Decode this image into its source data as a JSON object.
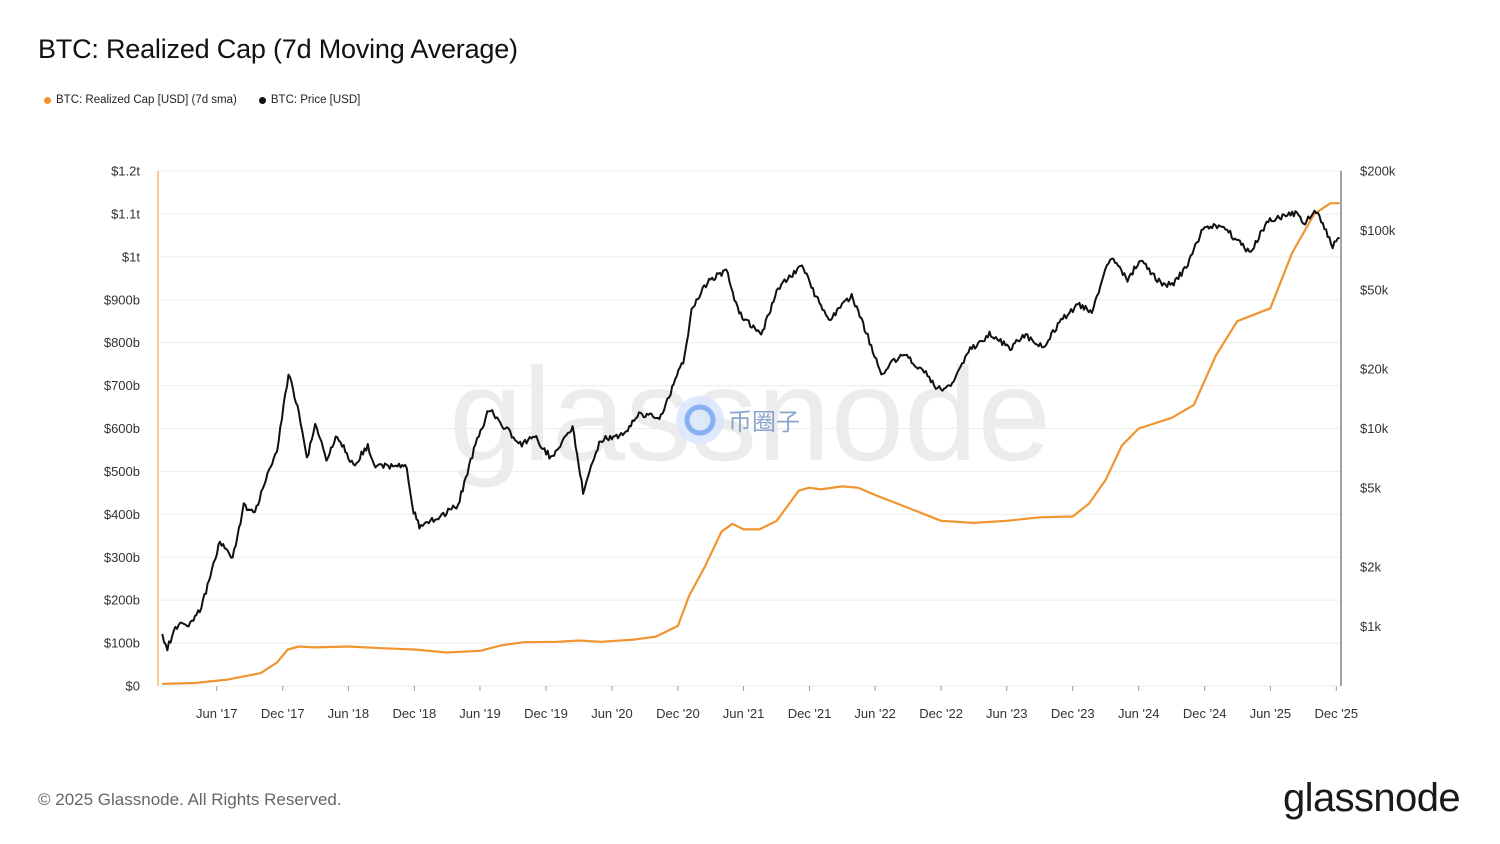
{
  "title": "BTC: Realized Cap (7d Moving Average)",
  "legend": [
    {
      "label": "BTC: Realized Cap [USD] (7d sma)",
      "color": "#f0952f"
    },
    {
      "label": "BTC: Price [USD]",
      "color": "#111111"
    }
  ],
  "footer": "© 2025 Glassnode. All Rights Reserved.",
  "brand": "glassnode",
  "watermark": {
    "text": "glassnode",
    "badge_text": "币圈子"
  },
  "chart_data": {
    "type": "line",
    "x_ticks": [
      "Jun '17",
      "Dec '17",
      "Jun '18",
      "Dec '18",
      "Jun '19",
      "Dec '19",
      "Jun '20",
      "Dec '20",
      "Jun '21",
      "Dec '21",
      "Jun '22",
      "Dec '22",
      "Jun '23",
      "Dec '23",
      "Jun '24",
      "Dec '24",
      "Jun '25",
      "Dec '25"
    ],
    "y_left": {
      "scale": "linear",
      "min": 0,
      "max": 1200,
      "unit": "billion USD",
      "ticks": [
        {
          "v": 0,
          "label": "$0"
        },
        {
          "v": 100,
          "label": "$100b"
        },
        {
          "v": 200,
          "label": "$200b"
        },
        {
          "v": 300,
          "label": "$300b"
        },
        {
          "v": 400,
          "label": "$400b"
        },
        {
          "v": 500,
          "label": "$500b"
        },
        {
          "v": 600,
          "label": "$600b"
        },
        {
          "v": 700,
          "label": "$700b"
        },
        {
          "v": 800,
          "label": "$800b"
        },
        {
          "v": 900,
          "label": "$900b"
        },
        {
          "v": 1000,
          "label": "$1t"
        },
        {
          "v": 1100,
          "label": "$1.1t"
        },
        {
          "v": 1200,
          "label": "$1.2t"
        }
      ]
    },
    "y_right": {
      "scale": "log",
      "min": 500,
      "max": 200000,
      "ticks": [
        {
          "v": 1000,
          "label": "$1k"
        },
        {
          "v": 2000,
          "label": "$2k"
        },
        {
          "v": 5000,
          "label": "$5k"
        },
        {
          "v": 10000,
          "label": "$10k"
        },
        {
          "v": 20000,
          "label": "$20k"
        },
        {
          "v": 50000,
          "label": "$50k"
        },
        {
          "v": 100000,
          "label": "$100k"
        },
        {
          "v": 200000,
          "label": "$200k"
        }
      ]
    },
    "grid": true,
    "series": [
      {
        "name": "BTC: Realized Cap [USD] (7d sma)",
        "axis": "left",
        "color": "#f0952f",
        "points": [
          [
            "2017-01-01",
            5
          ],
          [
            "2017-04-01",
            7
          ],
          [
            "2017-07-01",
            15
          ],
          [
            "2017-10-01",
            30
          ],
          [
            "2017-11-15",
            55
          ],
          [
            "2017-12-15",
            85
          ],
          [
            "2018-01-15",
            92
          ],
          [
            "2018-03-01",
            90
          ],
          [
            "2018-06-01",
            92
          ],
          [
            "2018-09-01",
            88
          ],
          [
            "2018-12-01",
            85
          ],
          [
            "2019-03-01",
            78
          ],
          [
            "2019-06-01",
            82
          ],
          [
            "2019-08-01",
            95
          ],
          [
            "2019-10-01",
            102
          ],
          [
            "2020-01-01",
            103
          ],
          [
            "2020-03-01",
            106
          ],
          [
            "2020-05-01",
            103
          ],
          [
            "2020-08-01",
            108
          ],
          [
            "2020-10-01",
            115
          ],
          [
            "2020-12-01",
            140
          ],
          [
            "2021-01-01",
            210
          ],
          [
            "2021-02-15",
            280
          ],
          [
            "2021-04-01",
            360
          ],
          [
            "2021-05-01",
            378
          ],
          [
            "2021-06-01",
            365
          ],
          [
            "2021-07-15",
            365
          ],
          [
            "2021-09-01",
            385
          ],
          [
            "2021-11-01",
            455
          ],
          [
            "2021-12-01",
            462
          ],
          [
            "2022-01-01",
            458
          ],
          [
            "2022-03-01",
            465
          ],
          [
            "2022-04-15",
            462
          ],
          [
            "2022-06-01",
            445
          ],
          [
            "2022-09-01",
            415
          ],
          [
            "2022-12-01",
            385
          ],
          [
            "2023-03-01",
            380
          ],
          [
            "2023-06-01",
            385
          ],
          [
            "2023-09-01",
            393
          ],
          [
            "2023-12-01",
            395
          ],
          [
            "2024-01-15",
            425
          ],
          [
            "2024-03-01",
            480
          ],
          [
            "2024-04-15",
            560
          ],
          [
            "2024-06-01",
            600
          ],
          [
            "2024-09-01",
            625
          ],
          [
            "2024-11-01",
            655
          ],
          [
            "2025-01-01",
            770
          ],
          [
            "2025-03-01",
            850
          ],
          [
            "2025-06-01",
            880
          ],
          [
            "2025-08-01",
            1010
          ],
          [
            "2025-10-01",
            1100
          ],
          [
            "2025-11-15",
            1125
          ],
          [
            "2025-12-10",
            1125
          ]
        ]
      },
      {
        "name": "BTC: Price [USD]",
        "axis": "right",
        "color": "#111111",
        "points": [
          [
            "2017-01-01",
            900
          ],
          [
            "2017-01-15",
            780
          ],
          [
            "2017-02-15",
            1050
          ],
          [
            "2017-03-15",
            1020
          ],
          [
            "2017-04-15",
            1200
          ],
          [
            "2017-05-15",
            1800
          ],
          [
            "2017-06-10",
            2700
          ],
          [
            "2017-07-15",
            2200
          ],
          [
            "2017-08-15",
            4100
          ],
          [
            "2017-09-15",
            3700
          ],
          [
            "2017-10-15",
            5600
          ],
          [
            "2017-11-15",
            7800
          ],
          [
            "2017-12-17",
            19000
          ],
          [
            "2018-01-15",
            12000
          ],
          [
            "2018-02-06",
            7000
          ],
          [
            "2018-03-01",
            10500
          ],
          [
            "2018-04-01",
            7000
          ],
          [
            "2018-05-01",
            9200
          ],
          [
            "2018-06-15",
            6500
          ],
          [
            "2018-07-25",
            8200
          ],
          [
            "2018-08-15",
            6300
          ],
          [
            "2018-09-15",
            6500
          ],
          [
            "2018-11-10",
            6400
          ],
          [
            "2018-11-25",
            4000
          ],
          [
            "2018-12-15",
            3200
          ],
          [
            "2019-02-01",
            3500
          ],
          [
            "2019-04-01",
            4100
          ],
          [
            "2019-05-15",
            7800
          ],
          [
            "2019-06-26",
            12500
          ],
          [
            "2019-08-01",
            10500
          ],
          [
            "2019-09-25",
            8200
          ],
          [
            "2019-10-26",
            9300
          ],
          [
            "2019-12-15",
            7100
          ],
          [
            "2020-02-13",
            10200
          ],
          [
            "2020-03-13",
            4800
          ],
          [
            "2020-05-01",
            8800
          ],
          [
            "2020-07-01",
            9200
          ],
          [
            "2020-08-15",
            11800
          ],
          [
            "2020-10-15",
            11500
          ],
          [
            "2020-11-15",
            16000
          ],
          [
            "2020-12-20",
            23000
          ],
          [
            "2021-01-08",
            40000
          ],
          [
            "2021-02-21",
            55000
          ],
          [
            "2021-04-14",
            63000
          ],
          [
            "2021-05-20",
            38000
          ],
          [
            "2021-07-20",
            30000
          ],
          [
            "2021-09-05",
            51000
          ],
          [
            "2021-11-10",
            67000
          ],
          [
            "2021-12-15",
            48000
          ],
          [
            "2022-01-24",
            35000
          ],
          [
            "2022-03-28",
            47000
          ],
          [
            "2022-05-12",
            29000
          ],
          [
            "2022-06-18",
            19000
          ],
          [
            "2022-08-15",
            24000
          ],
          [
            "2022-10-15",
            19500
          ],
          [
            "2022-11-21",
            15800
          ],
          [
            "2023-01-01",
            16600
          ],
          [
            "2023-02-15",
            24500
          ],
          [
            "2023-04-14",
            30000
          ],
          [
            "2023-06-15",
            25200
          ],
          [
            "2023-07-15",
            30000
          ],
          [
            "2023-09-11",
            25500
          ],
          [
            "2023-10-25",
            34500
          ],
          [
            "2023-12-15",
            42000
          ],
          [
            "2024-01-23",
            39500
          ],
          [
            "2024-03-14",
            73000
          ],
          [
            "2024-05-01",
            57000
          ],
          [
            "2024-06-07",
            71000
          ],
          [
            "2024-08-05",
            53000
          ],
          [
            "2024-09-06",
            54000
          ],
          [
            "2024-10-15",
            67000
          ],
          [
            "2024-11-22",
            98000
          ],
          [
            "2024-12-17",
            106000
          ],
          [
            "2025-02-01",
            100000
          ],
          [
            "2025-04-08",
            77000
          ],
          [
            "2025-05-22",
            111000
          ],
          [
            "2025-07-14",
            120000
          ],
          [
            "2025-08-14",
            123000
          ],
          [
            "2025-09-01",
            108000
          ],
          [
            "2025-10-06",
            125000
          ],
          [
            "2025-11-21",
            84000
          ],
          [
            "2025-12-10",
            92000
          ]
        ]
      }
    ]
  }
}
